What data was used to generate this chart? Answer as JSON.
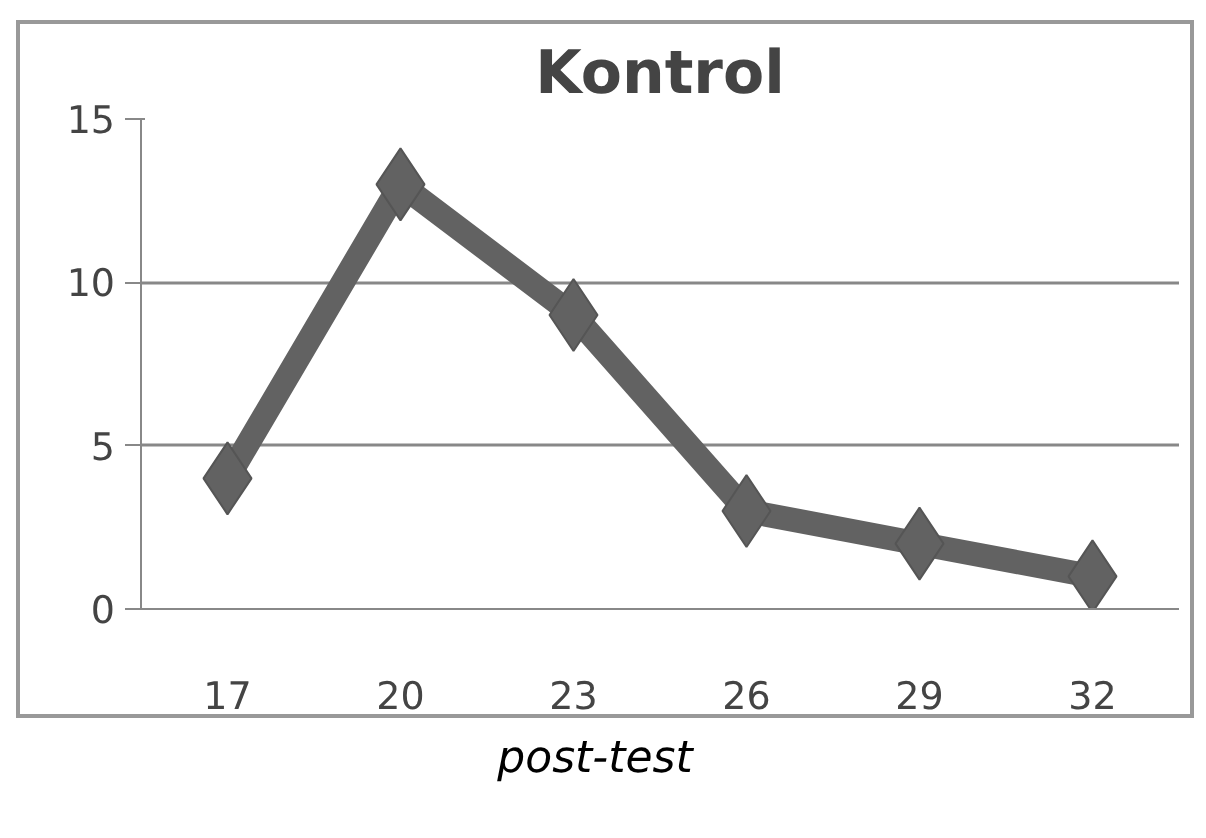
{
  "chart_data": {
    "type": "line",
    "title": "Kontrol",
    "categories": [
      "17",
      "20",
      "23",
      "26",
      "29",
      "32"
    ],
    "series": [
      {
        "color": "#626262",
        "values": [
          4,
          13,
          9,
          3,
          2,
          1
        ]
      }
    ],
    "ylim": [
      0,
      15
    ],
    "yticks": [
      0,
      5,
      10,
      15
    ],
    "grid": "y",
    "marker": "diamond",
    "line_style": "solid",
    "annotations": [
      "post-test"
    ]
  }
}
